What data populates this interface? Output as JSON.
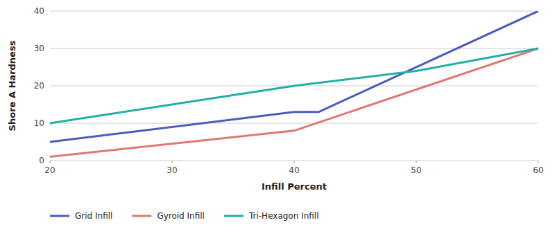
{
  "chart_data": {
    "type": "line",
    "xlabel": "Infill Percent",
    "ylabel": "Shore A Hardness",
    "xlim": [
      20,
      60
    ],
    "ylim": [
      0,
      40
    ],
    "xticks": [
      20,
      30,
      40,
      50,
      60
    ],
    "yticks": [
      0,
      10,
      20,
      30,
      40
    ],
    "grid": true,
    "legend": "bottom",
    "series": [
      {
        "name": "Grid Infill",
        "color": "#4a5cbf",
        "x": [
          20,
          40,
          42,
          60
        ],
        "values": [
          5,
          13,
          13,
          40
        ]
      },
      {
        "name": "Gyroid Infill",
        "color": "#e07870",
        "x": [
          20,
          40,
          60
        ],
        "values": [
          1,
          8,
          30
        ]
      },
      {
        "name": "Tri-Hexagon Infill",
        "color": "#20b0a8",
        "x": [
          20,
          40,
          50,
          60
        ],
        "values": [
          10,
          20,
          24,
          30
        ]
      }
    ]
  }
}
